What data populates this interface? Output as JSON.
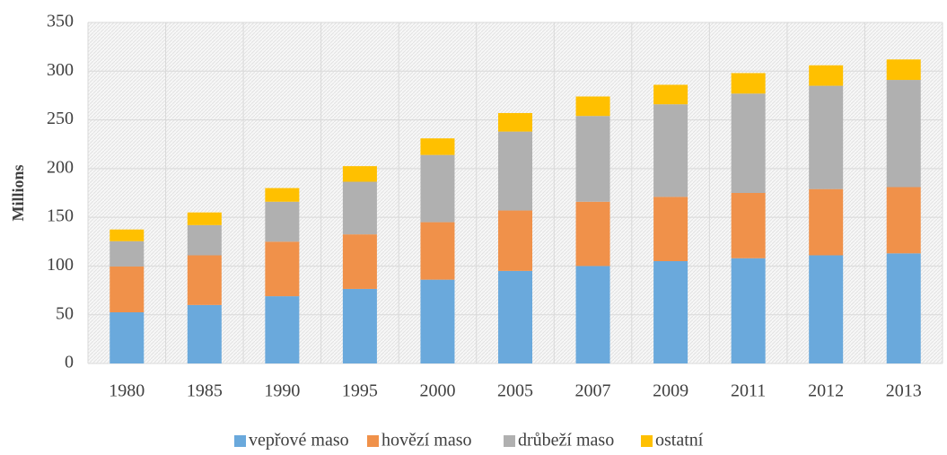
{
  "chart_data": {
    "type": "stacked_bar",
    "y_label": "Millions",
    "categories": [
      "1980",
      "1985",
      "1990",
      "1995",
      "2000",
      "2005",
      "2007",
      "2009",
      "2011",
      "2012",
      "2013"
    ],
    "series": [
      {
        "name": "vepřové maso",
        "color": "#6aa9dc",
        "values": [
          52.5,
          60,
          69,
          76.5,
          86,
          95,
          100,
          105,
          108,
          111,
          113
        ]
      },
      {
        "name": "hovězí maso",
        "color": "#f0914a",
        "values": [
          47,
          51,
          56,
          56,
          59,
          62,
          66,
          66,
          67,
          68,
          68
        ]
      },
      {
        "name": "drůbeží maso",
        "color": "#b0b0b0",
        "values": [
          26,
          31,
          41,
          54,
          69,
          81,
          88,
          95,
          102,
          106,
          110
        ]
      },
      {
        "name": "ostatní",
        "color": "#ffc000",
        "values": [
          12,
          13,
          14,
          16,
          17,
          19,
          20,
          20,
          21,
          21,
          21
        ]
      }
    ],
    "ylim": [
      0,
      350
    ],
    "yticks": [
      0,
      50,
      100,
      150,
      200,
      250,
      300,
      350
    ],
    "grid": true,
    "legend": "bottom"
  }
}
